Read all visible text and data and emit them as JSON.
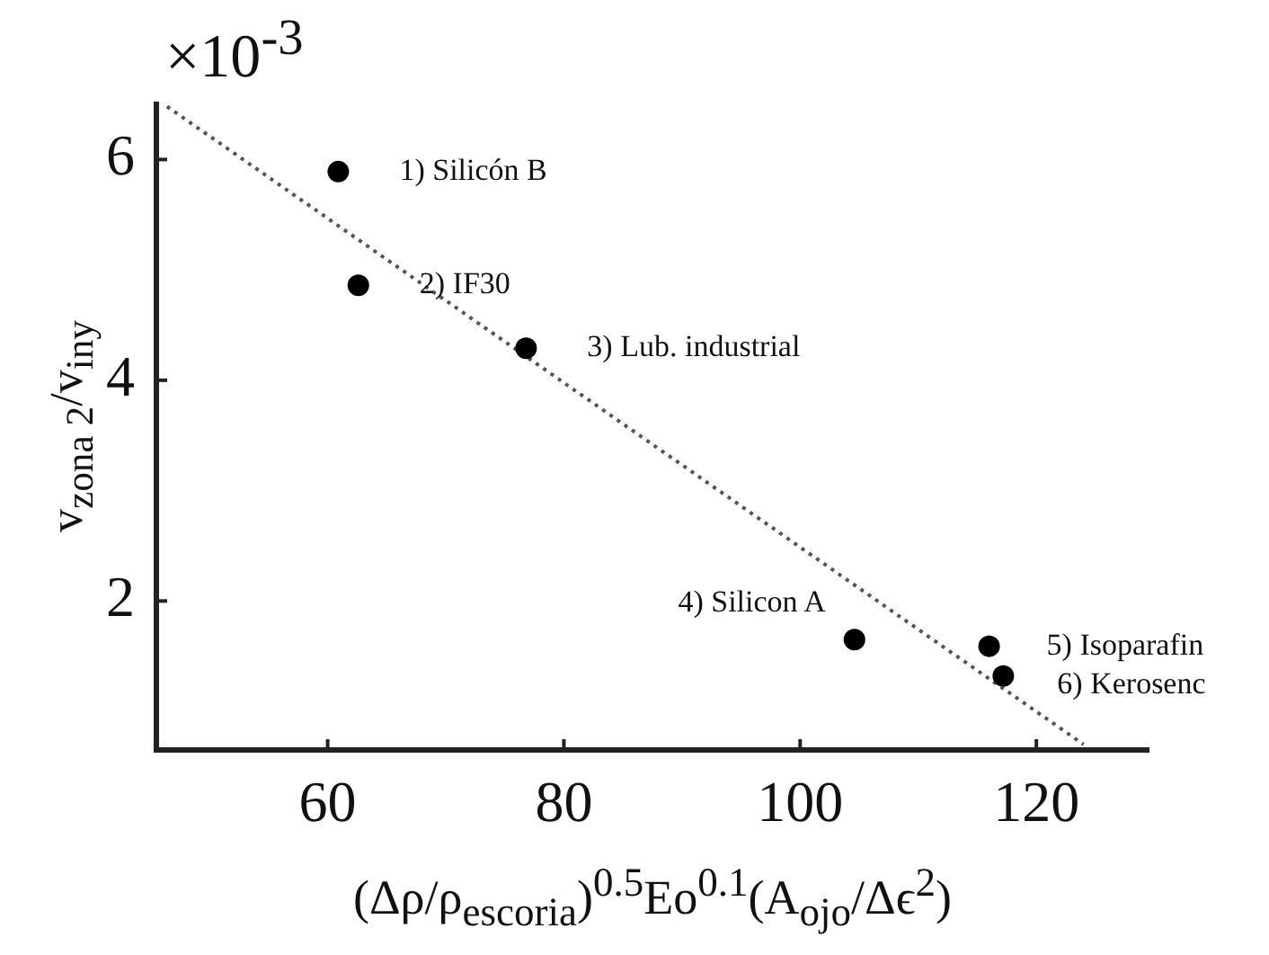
{
  "chart_data": {
    "type": "scatter",
    "xlabel": "(Δρ/ρ$_{escoria}$)$^{0.5}$Eo$^{0.1}$(A$_{ojo}$/Δϵ$^{2}$)",
    "ylabel": "v$_{zona 2}$/v$_{iny}$",
    "xlim": [
      45.5,
      129.5
    ],
    "xticks": [
      60,
      80,
      100,
      120
    ],
    "ylim": [
      0.65,
      6.5
    ],
    "yticks": [
      2,
      4,
      6
    ],
    "grid": false,
    "legend": false,
    "marker": "circle",
    "series": [
      {
        "color": "#000000",
        "x": [
          60.9,
          62.6,
          76.8,
          104.6,
          116.0,
          117.2
        ],
        "values": [
          5.89,
          4.86,
          4.29,
          1.65,
          1.59,
          1.32
        ]
      },
      {
        "type": "line",
        "color": "#555555",
        "line_style": "dotted",
        "marker": "none",
        "x": [
          46.4,
          124.0
        ],
        "values": [
          6.48,
          0.7
        ]
      }
    ],
    "annotations": [
      "×10$^{-3}$",
      {
        "text": "1) Silicón B",
        "x": 60.9,
        "y": 5.89
      },
      {
        "text": "2) IF30",
        "x": 62.6,
        "y": 4.86
      },
      {
        "text": "3) Lub. industrial",
        "x": 76.8,
        "y": 4.29
      },
      {
        "text": "4) Silicon A",
        "x": 104.6,
        "y": 1.65
      },
      {
        "text": "5) Isoparafin",
        "x": 116.0,
        "y": 1.59
      },
      {
        "text": "6) Kerosenc",
        "x": 117.2,
        "y": 1.32
      }
    ]
  }
}
